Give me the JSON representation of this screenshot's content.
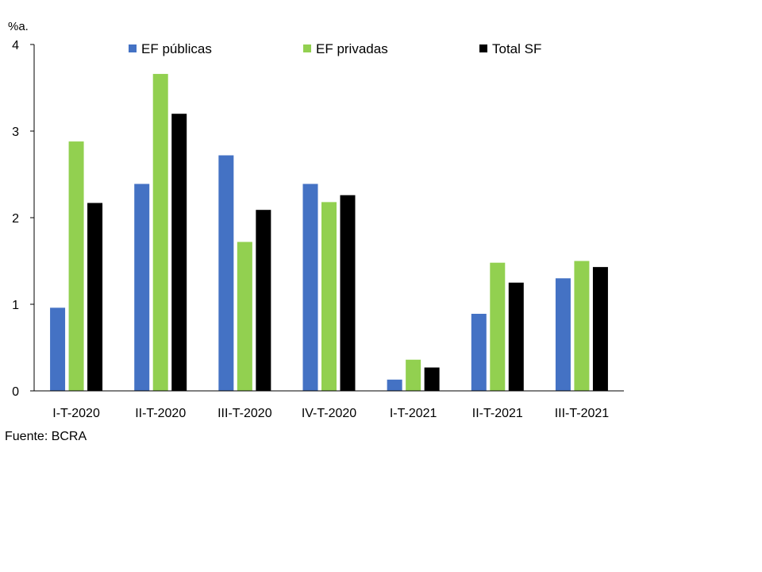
{
  "chart_data": {
    "type": "bar",
    "unit_label": "%a.",
    "categories": [
      "I-T-2020",
      "II-T-2020",
      "III-T-2020",
      "IV-T-2020",
      "I-T-2021",
      "II-T-2021",
      "III-T-2021"
    ],
    "series": [
      {
        "name": "EF públicas",
        "color": "#4472c4",
        "values": [
          0.96,
          2.39,
          2.72,
          2.39,
          0.13,
          0.89,
          1.3
        ]
      },
      {
        "name": "EF privadas",
        "color": "#92d050",
        "values": [
          2.88,
          3.66,
          1.72,
          2.18,
          0.36,
          1.48,
          1.5
        ]
      },
      {
        "name": "Total SF",
        "color": "#000000",
        "values": [
          2.17,
          3.2,
          2.09,
          2.26,
          0.27,
          1.25,
          1.43
        ]
      }
    ],
    "ylim": [
      0,
      4
    ],
    "yticks": [
      0,
      1,
      2,
      3,
      4
    ],
    "grid": false,
    "legend_position": "top"
  },
  "source": "Fuente: BCRA"
}
